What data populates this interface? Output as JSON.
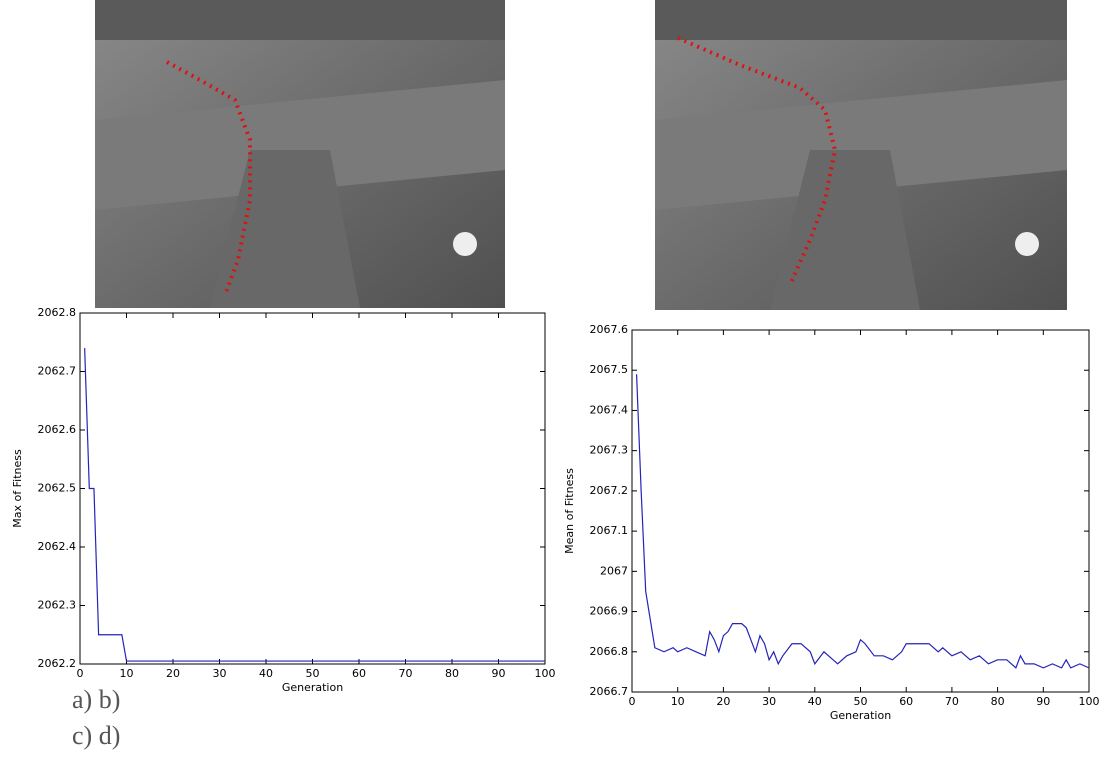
{
  "chart_data": [
    {
      "type": "line",
      "xlabel": "Generation",
      "ylabel": "Max of Fitness",
      "color": "#2424b8",
      "x": [
        1,
        2,
        3,
        4,
        9,
        10,
        100
      ],
      "values": [
        2062.74,
        2062.5,
        2062.5,
        2062.25,
        2062.25,
        2062.205,
        2062.205
      ],
      "xlim": [
        0,
        100
      ],
      "xticks": [
        0,
        10,
        20,
        30,
        40,
        50,
        60,
        70,
        80,
        90,
        100
      ],
      "ylim": [
        2062.2,
        2062.8
      ],
      "yticks": [
        2062.2,
        2062.3,
        2062.4,
        2062.5,
        2062.6,
        2062.7,
        2062.8
      ],
      "grid": false
    },
    {
      "type": "line",
      "xlabel": "Generation",
      "ylabel": "Mean of Fitness",
      "color": "#2424b8",
      "x": [
        1,
        2,
        3,
        4,
        5,
        7,
        9,
        10,
        12,
        14,
        16,
        17,
        18,
        19,
        20,
        21,
        22,
        23,
        24,
        25,
        26,
        27,
        28,
        29,
        30,
        31,
        32,
        33,
        35,
        37,
        39,
        40,
        42,
        44,
        45,
        47,
        49,
        50,
        51,
        53,
        55,
        57,
        59,
        60,
        62,
        65,
        67,
        68,
        70,
        72,
        74,
        76,
        78,
        80,
        82,
        84,
        85,
        86,
        88,
        90,
        92,
        94,
        95,
        96,
        98,
        100
      ],
      "values": [
        2067.49,
        2067.2,
        2066.95,
        2066.88,
        2066.81,
        2066.8,
        2066.81,
        2066.8,
        2066.81,
        2066.8,
        2066.79,
        2066.85,
        2066.83,
        2066.8,
        2066.84,
        2066.85,
        2066.87,
        2066.87,
        2066.87,
        2066.86,
        2066.83,
        2066.8,
        2066.84,
        2066.82,
        2066.78,
        2066.8,
        2066.77,
        2066.79,
        2066.82,
        2066.82,
        2066.8,
        2066.77,
        2066.8,
        2066.78,
        2066.77,
        2066.79,
        2066.8,
        2066.83,
        2066.82,
        2066.79,
        2066.79,
        2066.78,
        2066.8,
        2066.82,
        2066.82,
        2066.82,
        2066.8,
        2066.81,
        2066.79,
        2066.8,
        2066.78,
        2066.79,
        2066.77,
        2066.78,
        2066.78,
        2066.76,
        2066.79,
        2066.77,
        2066.77,
        2066.76,
        2066.77,
        2066.76,
        2066.78,
        2066.76,
        2066.77,
        2066.76
      ],
      "xlim": [
        0,
        100
      ],
      "xticks": [
        0,
        10,
        20,
        30,
        40,
        50,
        60,
        70,
        80,
        90,
        100
      ],
      "ylim": [
        2066.7,
        2067.6
      ],
      "yticks": [
        2066.7,
        2066.8,
        2066.9,
        2067,
        2067.1,
        2067.2,
        2067.3,
        2067.4,
        2067.5,
        2067.6
      ],
      "grid": false
    }
  ],
  "captions": [
    "a) b)",
    "c) d)"
  ]
}
